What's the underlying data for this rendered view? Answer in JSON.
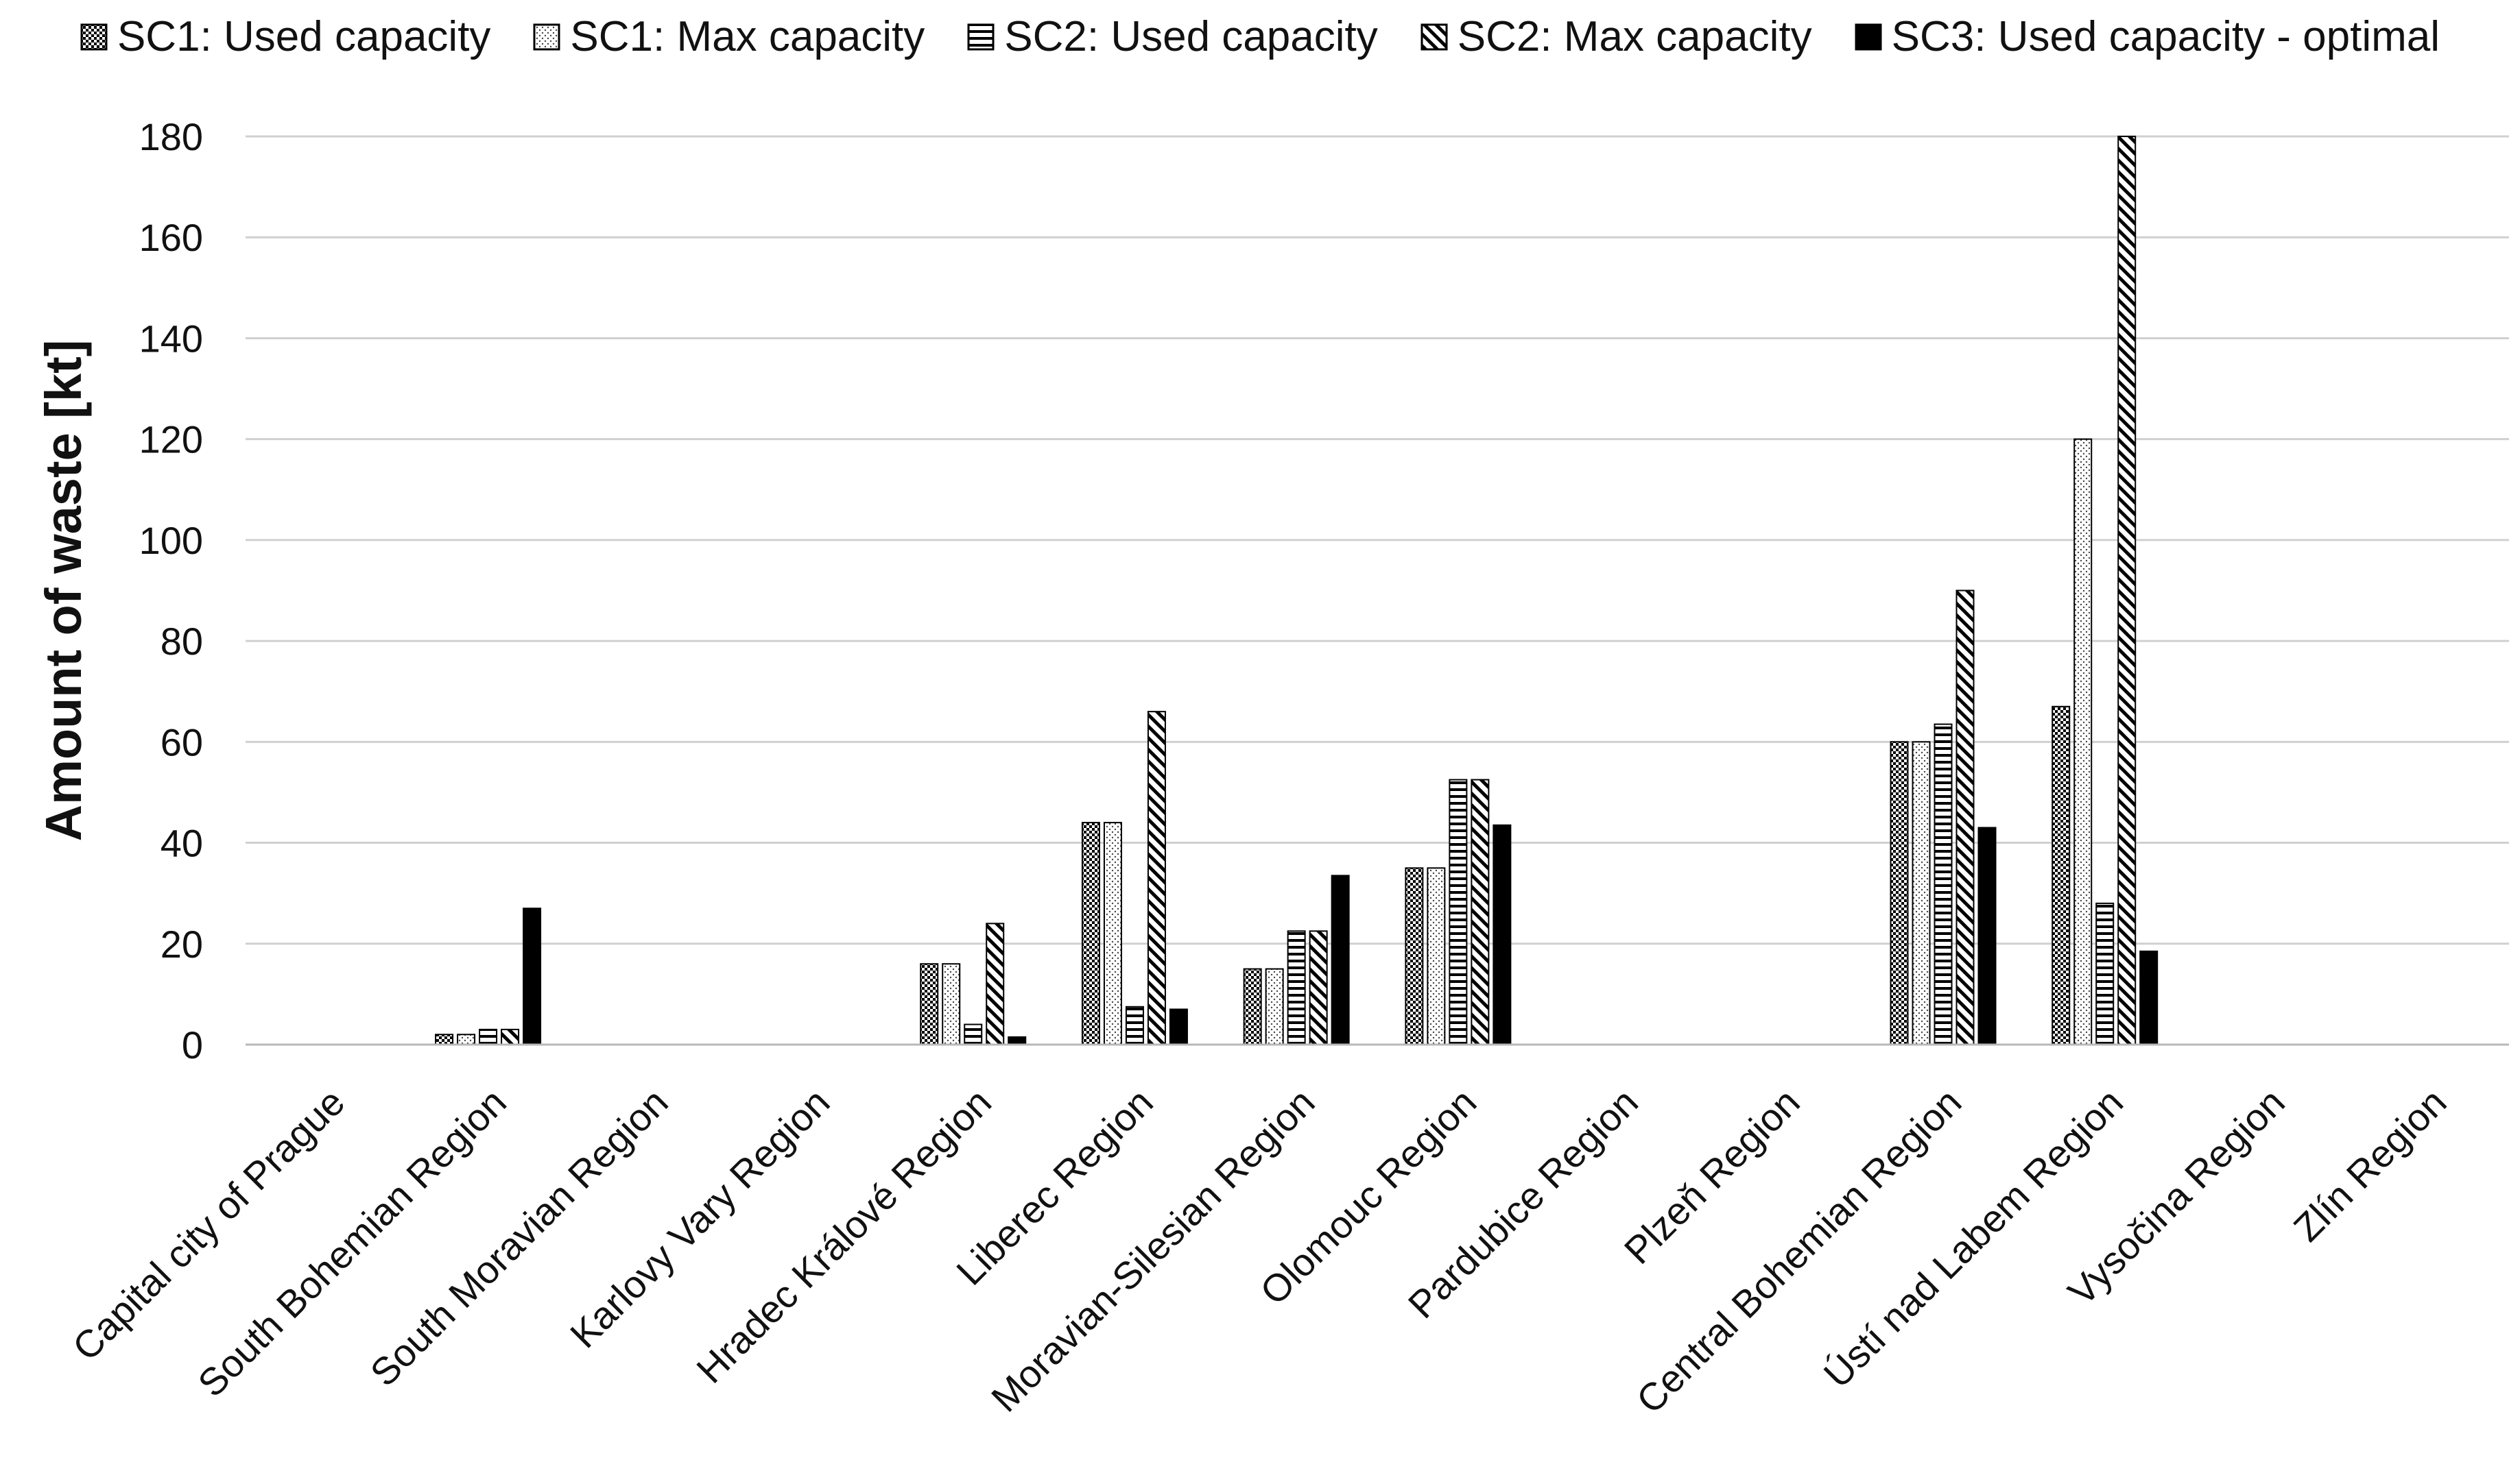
{
  "chart_data": {
    "type": "bar",
    "title": "",
    "xlabel": "",
    "ylabel": "Amount of waste [kt]",
    "ylim": [
      0,
      180
    ],
    "yticks": [
      0,
      20,
      40,
      60,
      80,
      100,
      120,
      140,
      160,
      180
    ],
    "grid": true,
    "legend_position": "top",
    "categories": [
      "Capital city of Prague",
      "South Bohemian Region",
      "South Moravian Region",
      "Karlovy Vary Region",
      "Hradec Králové Region",
      "Liberec Region",
      "Moravian-Silesian Region",
      "Olomouc Region",
      "Pardubice Region",
      "Plzeň Region",
      "Central Bohemian Region",
      "Ústí nad Labem Region",
      "Vysočina Region",
      "Zlín Region"
    ],
    "series": [
      {
        "name": "SC1: Used capacity",
        "pattern": "checker",
        "values": [
          0,
          2,
          0,
          0,
          16,
          44,
          15,
          35,
          0,
          0,
          60,
          67,
          0,
          0
        ]
      },
      {
        "name": "SC1: Max capacity",
        "pattern": "dots",
        "values": [
          0,
          2,
          0,
          0,
          16,
          44,
          15,
          35,
          0,
          0,
          60,
          120,
          0,
          0
        ]
      },
      {
        "name": "SC2: Used capacity",
        "pattern": "hlines",
        "values": [
          0,
          3,
          0,
          0,
          4,
          7.5,
          22.5,
          52.5,
          0,
          0,
          63.5,
          28,
          0,
          0
        ]
      },
      {
        "name": "SC2: Max capacity",
        "pattern": "diag",
        "values": [
          0,
          3,
          0,
          0,
          24,
          66,
          22.5,
          52.5,
          0,
          0,
          90,
          180,
          0,
          0
        ]
      },
      {
        "name": "SC3: Used capacity - optimal",
        "pattern": "solid",
        "values": [
          0,
          27,
          0,
          0,
          1.5,
          7,
          33.5,
          43.5,
          0,
          0,
          43,
          18.5,
          0,
          0
        ]
      }
    ]
  }
}
